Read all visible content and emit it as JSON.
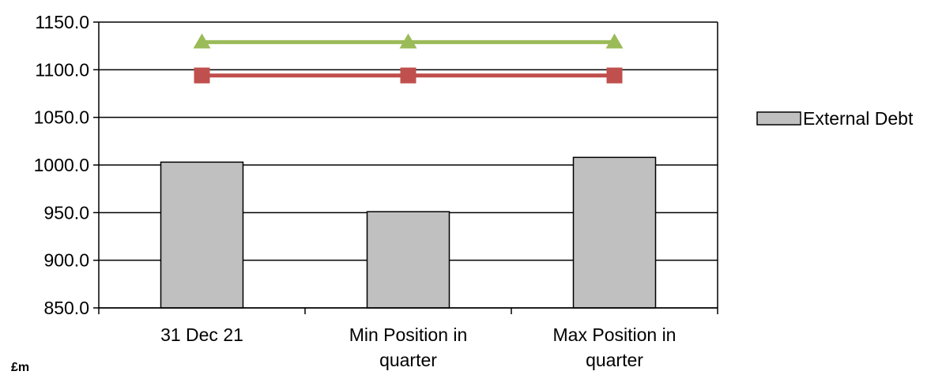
{
  "chart_data": {
    "type": "bar",
    "categories": [
      [
        "31 Dec 21"
      ],
      [
        "Min Position in",
        "quarter"
      ],
      [
        "Max Position in",
        "quarter"
      ]
    ],
    "series": [
      {
        "name": "External Debt",
        "kind": "bar",
        "values": [
          1003.0,
          951.0,
          1008.0
        ],
        "color": "#c0c0c0",
        "stroke": "#000000"
      },
      {
        "kind": "line",
        "values": [
          1094.0,
          1094.0,
          1094.0
        ],
        "color": "#c0504d",
        "marker": "square"
      },
      {
        "kind": "line",
        "values": [
          1129.0,
          1129.0,
          1129.0
        ],
        "color": "#9bbb59",
        "marker": "triangle"
      }
    ],
    "ylim": [
      850,
      1150
    ],
    "yticks": [
      "850.0",
      "900.0",
      "950.0",
      "1000.0",
      "1050.0",
      "1100.0",
      "1150.0"
    ],
    "ytick_values": [
      850,
      900,
      950,
      1000,
      1050,
      1100,
      1150
    ],
    "unit_label": "£m",
    "legend_position": "right",
    "grid": true
  }
}
